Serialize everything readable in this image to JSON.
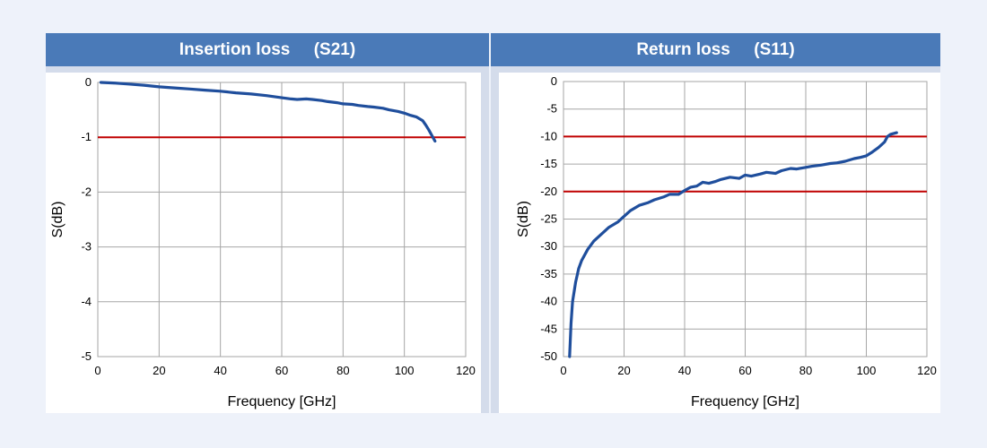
{
  "colors": {
    "background": "#eef2fa",
    "header": "#4a7ab8",
    "header_text": "#ffffff",
    "series": "#1f4e9c",
    "limit": "#c00000",
    "grid": "#a6a6a6"
  },
  "chart_data": [
    {
      "type": "line",
      "title": "Insertion loss     (S21)",
      "xlabel": "Frequency [GHz]",
      "ylabel": "S(dB)",
      "xlim": [
        0,
        120
      ],
      "ylim": [
        -5,
        0
      ],
      "xticks": [
        0,
        20,
        40,
        60,
        80,
        100,
        120
      ],
      "yticks": [
        0,
        -1,
        -2,
        -3,
        -4,
        -5
      ],
      "grid": true,
      "legend": "none",
      "limit_lines": [
        -1
      ],
      "series": [
        {
          "x": [
            1,
            5,
            10,
            15,
            20,
            25,
            30,
            35,
            40,
            45,
            50,
            55,
            60,
            63,
            65,
            68,
            70,
            73,
            75,
            78,
            80,
            83,
            85,
            88,
            90,
            93,
            95,
            98,
            100,
            102,
            104,
            106,
            107,
            108,
            109,
            110
          ],
          "y": [
            0.0,
            -0.01,
            -0.03,
            -0.05,
            -0.08,
            -0.1,
            -0.12,
            -0.14,
            -0.16,
            -0.19,
            -0.21,
            -0.24,
            -0.28,
            -0.3,
            -0.31,
            -0.3,
            -0.31,
            -0.33,
            -0.35,
            -0.37,
            -0.39,
            -0.4,
            -0.42,
            -0.44,
            -0.45,
            -0.47,
            -0.5,
            -0.53,
            -0.56,
            -0.6,
            -0.63,
            -0.7,
            -0.78,
            -0.87,
            -0.97,
            -1.07
          ]
        }
      ]
    },
    {
      "type": "line",
      "title": "Return loss     (S11)",
      "xlabel": "Frequency [GHz]",
      "ylabel": "S(dB)",
      "xlim": [
        0,
        120
      ],
      "ylim": [
        -50,
        0
      ],
      "xticks": [
        0,
        20,
        40,
        60,
        80,
        100,
        120
      ],
      "yticks": [
        0,
        -5,
        -10,
        -15,
        -20,
        -25,
        -30,
        -35,
        -40,
        -45,
        -50
      ],
      "grid": true,
      "legend": "none",
      "limit_lines": [
        -10,
        -20
      ],
      "series": [
        {
          "x": [
            2,
            2.5,
            3,
            4,
            5,
            6,
            8,
            10,
            12,
            15,
            18,
            20,
            22,
            25,
            28,
            30,
            33,
            35,
            38,
            40,
            42,
            44,
            46,
            48,
            50,
            52,
            55,
            58,
            60,
            62,
            65,
            67,
            70,
            72,
            75,
            77,
            80,
            82,
            85,
            88,
            90,
            93,
            96,
            98,
            100,
            102,
            104,
            106,
            107,
            108,
            110
          ],
          "y": [
            -50,
            -44,
            -40,
            -36.5,
            -34,
            -32.5,
            -30.5,
            -29,
            -28,
            -26.5,
            -25.5,
            -24.5,
            -23.5,
            -22.5,
            -22,
            -21.5,
            -21,
            -20.5,
            -20.5,
            -19.8,
            -19.2,
            -19,
            -18.3,
            -18.5,
            -18.2,
            -17.8,
            -17.4,
            -17.6,
            -17,
            -17.2,
            -16.8,
            -16.5,
            -16.7,
            -16.2,
            -15.8,
            -15.9,
            -15.6,
            -15.4,
            -15.2,
            -14.9,
            -14.8,
            -14.5,
            -14.0,
            -13.8,
            -13.5,
            -12.8,
            -12.0,
            -11.0,
            -10.0,
            -9.6,
            -9.3
          ]
        }
      ]
    }
  ]
}
